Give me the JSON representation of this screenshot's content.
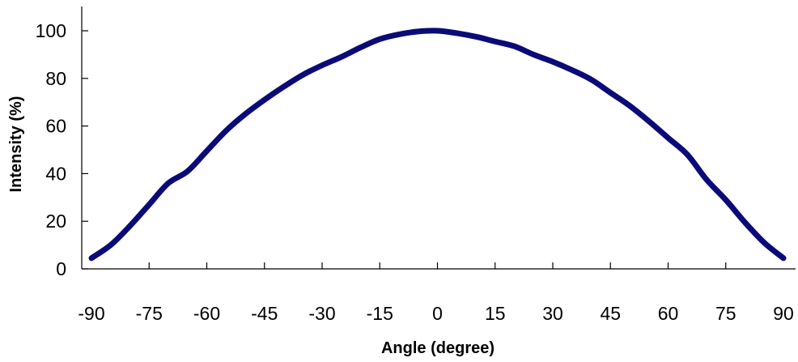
{
  "chart_data": {
    "type": "line",
    "xlabel": "Angle  (degree)",
    "ylabel": "Intensity (%)",
    "xlim": [
      -90,
      90
    ],
    "ylim": [
      0,
      110
    ],
    "xticks": [
      -90,
      -75,
      -60,
      -45,
      -30,
      -15,
      0,
      15,
      30,
      45,
      60,
      75,
      90
    ],
    "yticks": [
      0,
      20,
      40,
      60,
      80,
      100
    ],
    "grid": false,
    "line_color": "#0a0a78",
    "series": [
      {
        "x": [
          -90,
          -85,
          -80,
          -75,
          -70,
          -65,
          -60,
          -55,
          -50,
          -45,
          -40,
          -35,
          -30,
          -25,
          -20,
          -15,
          -10,
          -5,
          0,
          5,
          10,
          15,
          20,
          25,
          30,
          35,
          40,
          45,
          50,
          55,
          60,
          65,
          70,
          75,
          80,
          85,
          90
        ],
        "y": [
          4.5,
          10,
          18,
          27,
          36,
          41,
          49.5,
          58,
          65,
          71,
          76.5,
          81.5,
          85.5,
          89,
          93,
          96.5,
          98.5,
          99.7,
          100,
          99,
          97.5,
          95.5,
          93.5,
          90,
          87,
          83.5,
          79.5,
          74,
          68.5,
          62,
          55,
          48,
          37.5,
          29,
          19.5,
          11,
          4.5
        ]
      }
    ]
  }
}
